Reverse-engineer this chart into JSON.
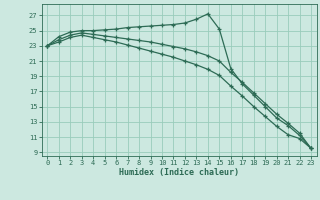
{
  "xlabel": "Humidex (Indice chaleur)",
  "background_color": "#cce8e0",
  "grid_color": "#99ccbb",
  "line_color": "#2d6b55",
  "x_values": [
    0,
    1,
    2,
    3,
    4,
    5,
    6,
    7,
    8,
    9,
    10,
    11,
    12,
    13,
    14,
    15,
    16,
    17,
    18,
    19,
    20,
    21,
    22,
    23
  ],
  "line1_y": [
    23.0,
    24.2,
    24.8,
    25.0,
    25.0,
    25.1,
    25.2,
    25.4,
    25.5,
    25.6,
    25.7,
    25.8,
    26.0,
    26.5,
    27.2,
    25.2,
    20.0,
    18.0,
    16.5,
    15.0,
    13.5,
    12.5,
    11.2,
    9.5
  ],
  "line2_y": [
    23.0,
    23.8,
    24.4,
    24.7,
    24.5,
    24.3,
    24.1,
    23.9,
    23.7,
    23.5,
    23.2,
    22.9,
    22.6,
    22.2,
    21.7,
    21.0,
    19.5,
    18.2,
    16.8,
    15.4,
    14.0,
    12.8,
    11.5,
    9.5
  ],
  "line3_y": [
    23.0,
    23.5,
    24.1,
    24.4,
    24.1,
    23.8,
    23.5,
    23.1,
    22.7,
    22.3,
    21.9,
    21.5,
    21.0,
    20.5,
    19.9,
    19.1,
    17.7,
    16.4,
    15.0,
    13.7,
    12.4,
    11.3,
    10.8,
    9.5
  ],
  "ylim": [
    8.5,
    28.5
  ],
  "xlim": [
    -0.5,
    23.5
  ],
  "yticks": [
    9,
    11,
    13,
    15,
    17,
    19,
    21,
    23,
    25,
    27
  ],
  "xticks": [
    0,
    1,
    2,
    3,
    4,
    5,
    6,
    7,
    8,
    9,
    10,
    11,
    12,
    13,
    14,
    15,
    16,
    17,
    18,
    19,
    20,
    21,
    22,
    23
  ]
}
